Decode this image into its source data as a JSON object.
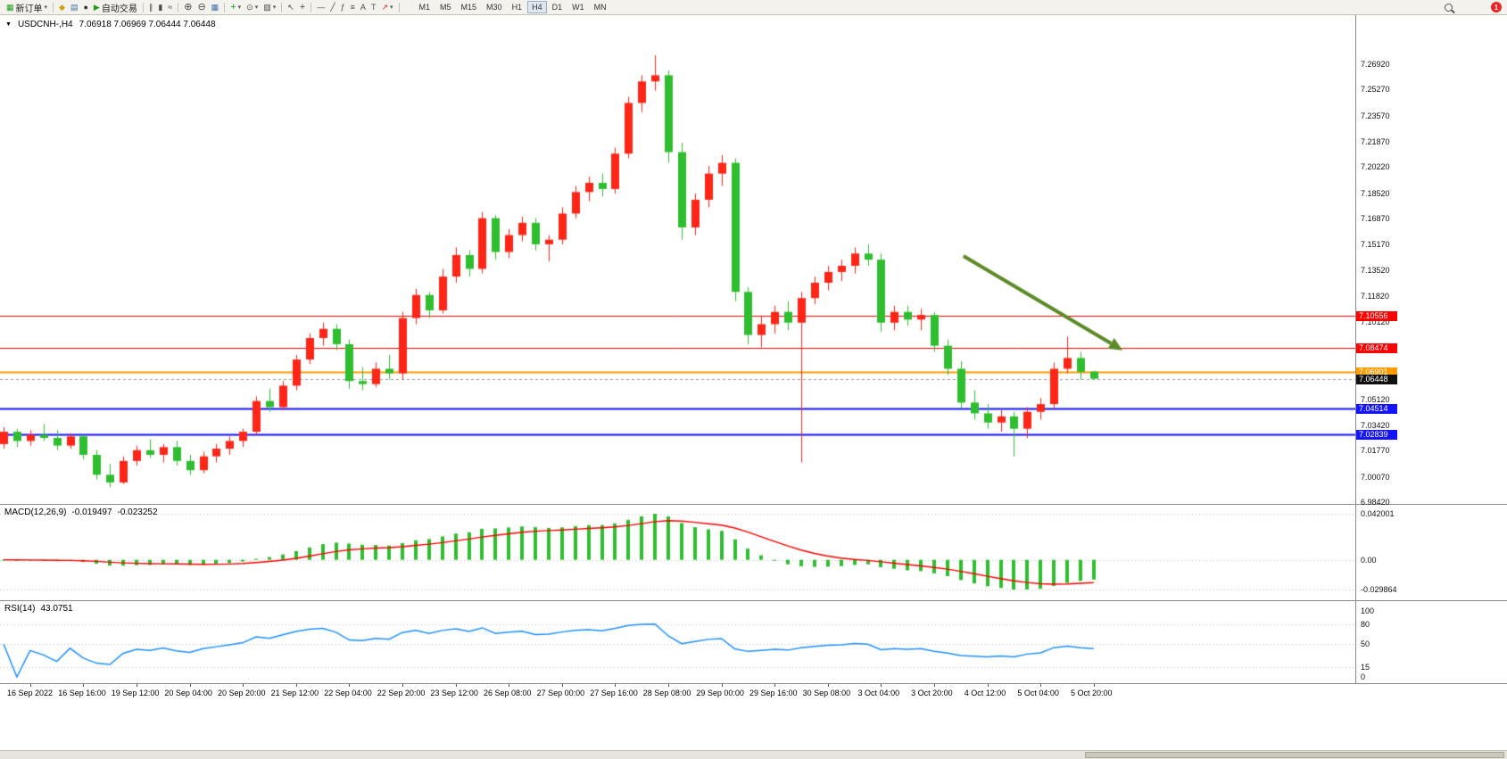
{
  "toolbar": {
    "new_order": "新订单",
    "autotrading": "自动交易",
    "timeframes": [
      "M1",
      "M5",
      "M15",
      "M30",
      "H1",
      "H4",
      "D1",
      "W1",
      "MN"
    ],
    "active_timeframe": "H4",
    "notification_count": "1"
  },
  "icons": {
    "collapse": "▼",
    "dropdown": "▾",
    "new_order": "▦",
    "market_watch": "◆",
    "data_window": "▤",
    "navigator": "●",
    "autotrade_play": "▶",
    "chart_bar": "∥",
    "chart_candle": "▮",
    "chart_line": "≈",
    "zoom_in": "⊕",
    "zoom_out": "⊖",
    "tile_windows": "▦",
    "indicators_add": "+",
    "periods": "⊙",
    "templates": "▨",
    "cursor": "↖",
    "crosshair": "+",
    "hline": "—",
    "trendline": "╱",
    "fibonacci": "ƒ",
    "channel": "≡",
    "text": "A",
    "text_label": "T",
    "arrows_tool": "↗"
  },
  "chart": {
    "title_symbol": "USDCNH-,H4",
    "title_ohlc": "7.06918 7.06969 7.06444 7.06448"
  },
  "indicators": {
    "macd": {
      "label": "MACD(12,26,9)",
      "value_main": "-0.019497",
      "value_signal": "-0.023252",
      "axis": [
        "0.042001",
        "0.00",
        "-0.029864"
      ]
    },
    "rsi": {
      "label": "RSI(14)",
      "value": "43.0751",
      "axis": [
        "100",
        "80",
        "50",
        "15",
        "0"
      ],
      "axis_values": [
        100,
        80,
        50,
        15,
        0
      ],
      "levels": [
        80,
        50,
        15
      ]
    }
  },
  "chart_data": {
    "type": "candlestick",
    "symbol": "USDCNH",
    "timeframe": "H4",
    "bull_color": "#ff2618",
    "bear_color": "#2fbe2f",
    "macd": {
      "fast": 12,
      "slow": 26,
      "signal": 9,
      "color_histogram": "#2fbe2f",
      "color_signal": "#ff0000"
    },
    "rsi_period": 14,
    "rsi_color": "#1e90ff",
    "price_axis_labels": [
      "7.26920",
      "7.25270",
      "7.23570",
      "7.21870",
      "7.20220",
      "7.18520",
      "7.16870",
      "7.15170",
      "7.13520",
      "7.11820",
      "7.10120",
      "7.08470",
      "7.06770",
      "7.05120",
      "7.03420",
      "7.01770",
      "7.00070",
      "6.98420"
    ],
    "price_axis_values": [
      7.2692,
      7.2527,
      7.2357,
      7.2187,
      7.2022,
      7.1852,
      7.1687,
      7.1517,
      7.1352,
      7.1182,
      7.1012,
      7.0847,
      7.0677,
      7.0512,
      7.0342,
      7.0177,
      7.0007,
      6.9842
    ],
    "time_labels": [
      "16 Sep 2022",
      "16 Sep 16:00",
      "19 Sep 12:00",
      "20 Sep 04:00",
      "20 Sep 20:00",
      "21 Sep 12:00",
      "22 Sep 04:00",
      "22 Sep 20:00",
      "23 Sep 12:00",
      "26 Sep 08:00",
      "27 Sep 00:00",
      "27 Sep 16:00",
      "28 Sep 08:00",
      "29 Sep 00:00",
      "29 Sep 16:00",
      "30 Sep 08:00",
      "3 Oct 04:00",
      "3 Oct 20:00",
      "4 Oct 12:00",
      "5 Oct 04:00",
      "5 Oct 20:00"
    ],
    "time_label_first_index": 2,
    "time_label_step": 4,
    "levels": [
      {
        "price": 7.10556,
        "label": "7.10556",
        "color": "#ff0000",
        "width": 1
      },
      {
        "price": 7.08474,
        "label": "7.08474",
        "color": "#ff0000",
        "width": 1
      },
      {
        "price": 7.06901,
        "label": "7.06901",
        "color": "#ff9c00",
        "width": 2
      },
      {
        "price": 7.04514,
        "label": "7.04514",
        "color": "#1414ff",
        "width": 2
      },
      {
        "price": 7.02839,
        "label": "7.02839",
        "color": "#1414ff",
        "width": 2
      }
    ],
    "current_price": {
      "value": 7.06448,
      "label": "7.06448",
      "color": "#101010"
    },
    "arrow_annotation": {
      "from_index": 72.2,
      "from_price": 7.1444,
      "to_index": 83.3,
      "to_price": 7.0875,
      "color": "#5d8a27"
    },
    "candles_ohlc": [
      [
        7.022,
        7.033,
        7.019,
        7.03
      ],
      [
        7.03,
        7.032,
        7.02,
        7.024
      ],
      [
        7.024,
        7.031,
        7.021,
        7.028
      ],
      [
        7.028,
        7.035,
        7.024,
        7.026
      ],
      [
        7.026,
        7.031,
        7.018,
        7.021
      ],
      [
        7.021,
        7.029,
        7.019,
        7.027
      ],
      [
        7.027,
        7.028,
        7.012,
        7.015
      ],
      [
        7.015,
        7.018,
        6.999,
        7.002
      ],
      [
        7.002,
        7.009,
        6.994,
        6.997
      ],
      [
        6.997,
        7.014,
        6.996,
        7.011
      ],
      [
        7.011,
        7.021,
        7.008,
        7.018
      ],
      [
        7.018,
        7.025,
        7.013,
        7.015
      ],
      [
        7.015,
        7.022,
        7.01,
        7.02
      ],
      [
        7.02,
        7.024,
        7.008,
        7.011
      ],
      [
        7.011,
        7.015,
        7.002,
        7.005
      ],
      [
        7.005,
        7.017,
        7.003,
        7.014
      ],
      [
        7.014,
        7.022,
        7.01,
        7.019
      ],
      [
        7.019,
        7.027,
        7.015,
        7.024
      ],
      [
        7.024,
        7.032,
        7.02,
        7.03
      ],
      [
        7.03,
        7.053,
        7.028,
        7.05
      ],
      [
        7.05,
        7.058,
        7.043,
        7.046
      ],
      [
        7.046,
        7.063,
        7.044,
        7.06
      ],
      [
        7.06,
        7.08,
        7.057,
        7.077
      ],
      [
        7.077,
        7.094,
        7.074,
        7.091
      ],
      [
        7.091,
        7.101,
        7.086,
        7.097
      ],
      [
        7.097,
        7.1,
        7.083,
        7.087
      ],
      [
        7.087,
        7.09,
        7.058,
        7.063
      ],
      [
        7.063,
        7.072,
        7.057,
        7.061
      ],
      [
        7.061,
        7.075,
        7.059,
        7.071
      ],
      [
        7.071,
        7.08,
        7.064,
        7.068
      ],
      [
        7.068,
        7.108,
        7.064,
        7.104
      ],
      [
        7.104,
        7.123,
        7.1,
        7.119
      ],
      [
        7.119,
        7.121,
        7.104,
        7.109
      ],
      [
        7.109,
        7.136,
        7.107,
        7.131
      ],
      [
        7.131,
        7.15,
        7.127,
        7.145
      ],
      [
        7.145,
        7.148,
        7.131,
        7.136
      ],
      [
        7.136,
        7.173,
        7.133,
        7.169
      ],
      [
        7.169,
        7.171,
        7.142,
        7.147
      ],
      [
        7.147,
        7.162,
        7.143,
        7.158
      ],
      [
        7.158,
        7.17,
        7.154,
        7.166
      ],
      [
        7.166,
        7.169,
        7.148,
        7.152
      ],
      [
        7.152,
        7.158,
        7.141,
        7.155
      ],
      [
        7.155,
        7.176,
        7.152,
        7.172
      ],
      [
        7.172,
        7.19,
        7.169,
        7.186
      ],
      [
        7.186,
        7.196,
        7.18,
        7.192
      ],
      [
        7.192,
        7.198,
        7.183,
        7.188
      ],
      [
        7.188,
        7.215,
        7.185,
        7.211
      ],
      [
        7.211,
        7.248,
        7.208,
        7.244
      ],
      [
        7.244,
        7.262,
        7.238,
        7.258
      ],
      [
        7.258,
        7.275,
        7.252,
        7.262
      ],
      [
        7.262,
        7.265,
        7.205,
        7.212
      ],
      [
        7.212,
        7.218,
        7.155,
        7.163
      ],
      [
        7.163,
        7.185,
        7.158,
        7.181
      ],
      [
        7.181,
        7.203,
        7.176,
        7.198
      ],
      [
        7.198,
        7.21,
        7.19,
        7.205
      ],
      [
        7.205,
        7.208,
        7.115,
        7.121
      ],
      [
        7.121,
        7.124,
        7.087,
        7.093
      ],
      [
        7.093,
        7.105,
        7.085,
        7.1
      ],
      [
        7.1,
        7.112,
        7.094,
        7.108
      ],
      [
        7.108,
        7.115,
        7.096,
        7.101
      ],
      [
        7.101,
        7.121,
        7.01,
        7.117
      ],
      [
        7.117,
        7.131,
        7.113,
        7.127
      ],
      [
        7.127,
        7.138,
        7.122,
        7.134
      ],
      [
        7.134,
        7.142,
        7.128,
        7.138
      ],
      [
        7.138,
        7.15,
        7.133,
        7.146
      ],
      [
        7.146,
        7.152,
        7.138,
        7.142
      ],
      [
        7.142,
        7.146,
        7.095,
        7.101
      ],
      [
        7.101,
        7.112,
        7.096,
        7.108
      ],
      [
        7.108,
        7.112,
        7.099,
        7.103
      ],
      [
        7.103,
        7.11,
        7.096,
        7.106
      ],
      [
        7.106,
        7.108,
        7.082,
        7.086
      ],
      [
        7.086,
        7.09,
        7.067,
        7.071
      ],
      [
        7.071,
        7.076,
        7.045,
        7.049
      ],
      [
        7.049,
        7.057,
        7.038,
        7.042
      ],
      [
        7.042,
        7.048,
        7.032,
        7.036
      ],
      [
        7.036,
        7.044,
        7.03,
        7.04
      ],
      [
        7.04,
        7.043,
        7.014,
        7.032
      ],
      [
        7.032,
        7.046,
        7.026,
        7.043
      ],
      [
        7.043,
        7.052,
        7.038,
        7.048
      ],
      [
        7.048,
        7.075,
        7.045,
        7.071
      ],
      [
        7.071,
        7.092,
        7.068,
        7.078
      ],
      [
        7.078,
        7.082,
        7.064,
        7.069
      ],
      [
        7.06918,
        7.06969,
        7.06444,
        7.06448
      ]
    ]
  }
}
